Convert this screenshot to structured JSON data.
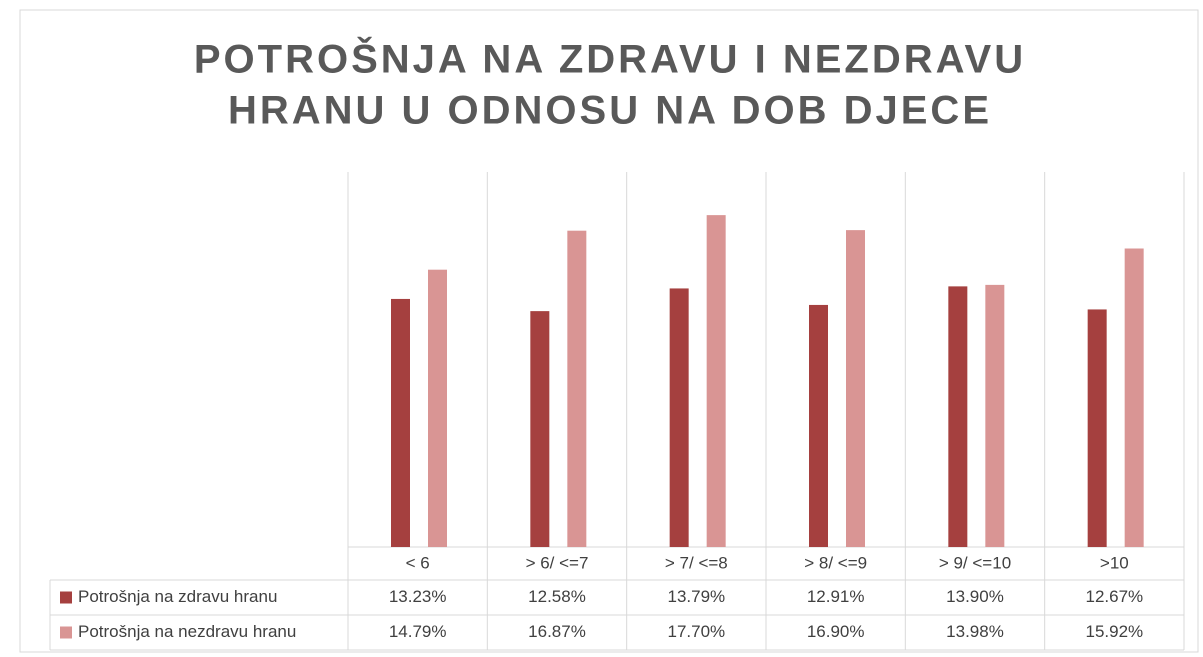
{
  "chart_data": {
    "type": "bar",
    "title": [
      "POTROŠNJA NA ZDRAVU I NEZDRAVU",
      "HRANU U ODNOSU NA DOB DJECE"
    ],
    "categories": [
      "< 6",
      "> 6/ <=7",
      "> 7/ <=8",
      "> 8/ <=9",
      "> 9/ <=10",
      ">10"
    ],
    "series": [
      {
        "name": "Potrošnja na zdravu hranu",
        "color": "#a5403f",
        "values": [
          13.23,
          12.58,
          13.79,
          12.91,
          13.9,
          12.67
        ],
        "value_labels": [
          "13.23%",
          "12.58%",
          "13.79%",
          "12.91%",
          "13.90%",
          "12.67%"
        ]
      },
      {
        "name": "Potrošnja na nezdravu hranu",
        "color": "#d99594",
        "values": [
          14.79,
          16.87,
          17.7,
          16.9,
          13.98,
          15.92
        ],
        "value_labels": [
          "14.79%",
          "16.87%",
          "17.70%",
          "16.90%",
          "13.98%",
          "15.92%"
        ]
      }
    ],
    "ylim": [
      0,
      20
    ]
  }
}
